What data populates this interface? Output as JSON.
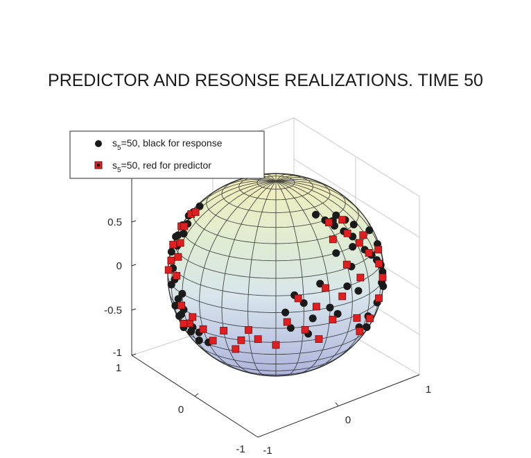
{
  "chart_data": {
    "type": "scatter",
    "subtype": "3d-sphere",
    "title": "PREDICTOR AND RESONSE REALIZATIONS. TIME 50",
    "zlim": [
      -1,
      1
    ],
    "xlim": [
      -1,
      1
    ],
    "ylim": [
      -1,
      1
    ],
    "z_ticks": [
      "0.5",
      "0",
      "-0.5",
      "-1"
    ],
    "x_ticks": [
      "1",
      "0",
      "-1"
    ],
    "y_ticks": [
      "-1",
      "0",
      "1"
    ],
    "grid": true,
    "legend_position": "top-left",
    "legend": [
      {
        "prefix": "s",
        "subscript": "5",
        "suffix": "=50, black for response",
        "marker": "circle",
        "color": "#1a1a1a"
      },
      {
        "prefix": "s",
        "subscript": "5",
        "suffix": "=50, red for predictor",
        "marker": "square",
        "color": "#e02020"
      }
    ],
    "series": [
      {
        "kind": "response",
        "color": "#1a1a1a",
        "points": [
          {
            "lon": -150,
            "lat": 0
          },
          {
            "lon": -145,
            "lat": -5
          },
          {
            "lon": -150,
            "lat": -10
          },
          {
            "lon": -140,
            "lat": -15
          },
          {
            "lon": -148,
            "lat": -20
          },
          {
            "lon": -142,
            "lat": -25
          },
          {
            "lon": -138,
            "lat": -30
          },
          {
            "lon": -135,
            "lat": -22
          },
          {
            "lon": -132,
            "lat": -35
          },
          {
            "lon": -140,
            "lat": -38
          },
          {
            "lon": -150,
            "lat": 5
          },
          {
            "lon": -146,
            "lat": 10
          },
          {
            "lon": -95,
            "lat": 30
          },
          {
            "lon": -90,
            "lat": 25
          },
          {
            "lon": -100,
            "lat": 20
          },
          {
            "lon": -85,
            "lat": 35
          },
          {
            "lon": -95,
            "lat": 40
          },
          {
            "lon": -80,
            "lat": 30
          },
          {
            "lon": -88,
            "lat": 15
          },
          {
            "lon": -75,
            "lat": 10
          },
          {
            "lon": -70,
            "lat": 5
          },
          {
            "lon": -80,
            "lat": 22
          },
          {
            "lon": -105,
            "lat": 10
          },
          {
            "lon": -110,
            "lat": 25
          },
          {
            "lon": -60,
            "lat": -10
          },
          {
            "lon": -65,
            "lat": -15
          },
          {
            "lon": -55,
            "lat": -20
          },
          {
            "lon": -70,
            "lat": -18
          },
          {
            "lon": -60,
            "lat": -25
          },
          {
            "lon": -50,
            "lat": -22
          },
          {
            "lon": -65,
            "lat": -5
          },
          {
            "lon": -72,
            "lat": -12
          },
          {
            "lon": -55,
            "lat": -30
          },
          {
            "lon": -45,
            "lat": -28
          },
          {
            "lon": -60,
            "lat": 0
          },
          {
            "lon": -75,
            "lat": 0
          },
          {
            "lon": -85,
            "lat": -25
          },
          {
            "lon": -80,
            "lat": -30
          },
          {
            "lon": -95,
            "lat": 45
          },
          {
            "lon": -100,
            "lat": 35
          },
          {
            "lon": 10,
            "lat": 10
          },
          {
            "lon": 15,
            "lat": 5
          },
          {
            "lon": 5,
            "lat": 0
          },
          {
            "lon": 20,
            "lat": -5
          },
          {
            "lon": 25,
            "lat": 15
          },
          {
            "lon": 8,
            "lat": -10
          },
          {
            "lon": 18,
            "lat": -15
          },
          {
            "lon": 30,
            "lat": 0
          },
          {
            "lon": 45,
            "lat": 50
          },
          {
            "lon": 50,
            "lat": 45
          },
          {
            "lon": 55,
            "lat": 40
          },
          {
            "lon": 60,
            "lat": 35
          },
          {
            "lon": 55,
            "lat": 30
          },
          {
            "lon": 65,
            "lat": 25
          },
          {
            "lon": 70,
            "lat": 20
          },
          {
            "lon": 75,
            "lat": 15
          },
          {
            "lon": 80,
            "lat": 10
          },
          {
            "lon": 82,
            "lat": 5
          },
          {
            "lon": 78,
            "lat": 0
          },
          {
            "lon": 85,
            "lat": -5
          },
          {
            "lon": 72,
            "lat": -10
          },
          {
            "lon": 60,
            "lat": 50
          },
          {
            "lon": 65,
            "lat": 45
          },
          {
            "lon": 52,
            "lat": 48
          },
          {
            "lon": 40,
            "lat": 55
          },
          {
            "lon": 70,
            "lat": 40
          },
          {
            "lon": 48,
            "lat": 20
          },
          {
            "lon": 42,
            "lat": 10
          },
          {
            "lon": 50,
            "lat": 5
          },
          {
            "lon": 62,
            "lat": -15
          },
          {
            "lon": 55,
            "lat": -20
          },
          {
            "lon": 68,
            "lat": -25
          },
          {
            "lon": 35,
            "lat": -5
          },
          {
            "lon": 40,
            "lat": 30
          },
          {
            "lon": 88,
            "lat": 20
          },
          {
            "lon": 86,
            "lat": 30
          }
        ]
      },
      {
        "kind": "predictor",
        "color": "#e02020",
        "points": [
          {
            "lon": -148,
            "lat": 2
          },
          {
            "lon": -143,
            "lat": -8
          },
          {
            "lon": -152,
            "lat": -12
          },
          {
            "lon": -138,
            "lat": -18
          },
          {
            "lon": -146,
            "lat": -26
          },
          {
            "lon": -135,
            "lat": -32
          },
          {
            "lon": -150,
            "lat": 8
          },
          {
            "lon": -141,
            "lat": 0
          },
          {
            "lon": -98,
            "lat": 28
          },
          {
            "lon": -88,
            "lat": 32
          },
          {
            "lon": -92,
            "lat": 18
          },
          {
            "lon": -82,
            "lat": 12
          },
          {
            "lon": -104,
            "lat": 22
          },
          {
            "lon": -77,
            "lat": 25
          },
          {
            "lon": -96,
            "lat": 38
          },
          {
            "lon": -110,
            "lat": 15
          },
          {
            "lon": -68,
            "lat": 8
          },
          {
            "lon": -85,
            "lat": 5
          },
          {
            "lon": -90,
            "lat": 42
          },
          {
            "lon": -72,
            "lat": 18
          },
          {
            "lon": -62,
            "lat": -8
          },
          {
            "lon": -57,
            "lat": -18
          },
          {
            "lon": -67,
            "lat": -22
          },
          {
            "lon": -52,
            "lat": -12
          },
          {
            "lon": -45,
            "lat": -18
          },
          {
            "lon": -40,
            "lat": -25
          },
          {
            "lon": -30,
            "lat": -15
          },
          {
            "lon": -20,
            "lat": -20
          },
          {
            "lon": -10,
            "lat": -18
          },
          {
            "lon": 0,
            "lat": -22
          },
          {
            "lon": -25,
            "lat": -28
          },
          {
            "lon": -15,
            "lat": -12
          },
          {
            "lon": 12,
            "lat": 8
          },
          {
            "lon": 22,
            "lat": 2
          },
          {
            "lon": 6,
            "lat": -6
          },
          {
            "lon": 28,
            "lat": 12
          },
          {
            "lon": 16,
            "lat": -12
          },
          {
            "lon": 32,
            "lat": -8
          },
          {
            "lon": 38,
            "lat": 5
          },
          {
            "lon": 25,
            "lat": -20
          },
          {
            "lon": 47,
            "lat": 48
          },
          {
            "lon": 57,
            "lat": 38
          },
          {
            "lon": 63,
            "lat": 30
          },
          {
            "lon": 68,
            "lat": 22
          },
          {
            "lon": 77,
            "lat": 12
          },
          {
            "lon": 81,
            "lat": 2
          },
          {
            "lon": 74,
            "lat": -8
          },
          {
            "lon": 66,
            "lat": -18
          },
          {
            "lon": 58,
            "lat": -24
          },
          {
            "lon": 50,
            "lat": -12
          },
          {
            "lon": 45,
            "lat": 22
          },
          {
            "lon": 53,
            "lat": 12
          },
          {
            "lon": 84,
            "lat": 18
          },
          {
            "lon": 62,
            "lat": 46
          },
          {
            "lon": 42,
            "lat": 38
          },
          {
            "lon": 72,
            "lat": 32
          }
        ]
      }
    ]
  }
}
